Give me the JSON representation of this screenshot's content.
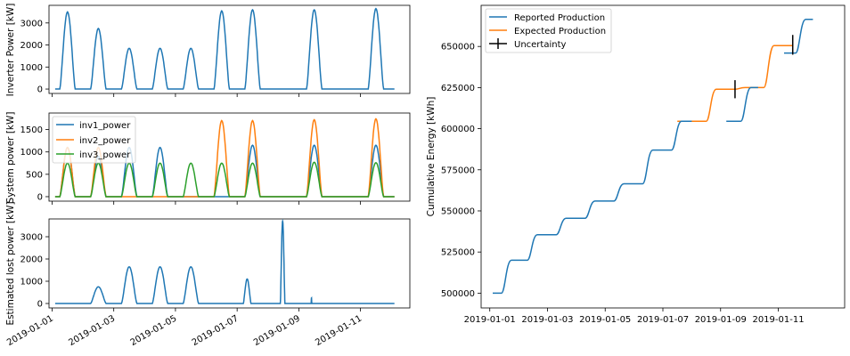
{
  "colors": {
    "blue": "#1f77b4",
    "orange": "#ff7f0e",
    "green": "#2ca02c",
    "black": "#000000"
  },
  "chart_data": [
    {
      "id": "inverter_power",
      "type": "line",
      "ylabel": "Inverter Power [kW]",
      "xlim": [
        -0.1,
        11.6
      ],
      "ylim": [
        -200,
        3800
      ],
      "yticks": [
        0,
        1000,
        2000,
        3000
      ],
      "series": [
        {
          "color": "blue",
          "days": [
            {
              "start": 0.25,
              "end": 0.75,
              "peak": 3500
            },
            {
              "start": 1.25,
              "end": 1.75,
              "peak": 2750
            },
            {
              "start": 2.25,
              "end": 2.75,
              "peak": 1850
            },
            {
              "start": 3.25,
              "end": 3.75,
              "peak": 1850
            },
            {
              "start": 4.25,
              "end": 4.75,
              "peak": 1850
            },
            {
              "start": 5.25,
              "end": 5.75,
              "peak": 3550
            },
            {
              "start": 6.25,
              "end": 6.75,
              "peak": 3600
            },
            {
              "start": 8.25,
              "end": 8.75,
              "peak": 3600
            },
            {
              "start": 10.25,
              "end": 10.75,
              "peak": 3650
            }
          ],
          "gaps": [
            [
              7.15,
              7.8
            ],
            [
              9.0,
              9.9
            ]
          ]
        }
      ]
    },
    {
      "id": "system_power",
      "type": "line",
      "ylabel": "System power [kW]",
      "xlim": [
        -0.1,
        11.6
      ],
      "ylim": [
        -100,
        1870
      ],
      "yticks": [
        0,
        500,
        1000,
        1500
      ],
      "legend": {
        "position": "upper-left",
        "entries": [
          "inv1_power",
          "inv2_power",
          "inv3_power"
        ]
      },
      "series": [
        {
          "name": "inv1_power",
          "color": "blue",
          "peaks": [
            1100,
            900,
            1100,
            1100,
            0,
            0,
            1150,
            1150,
            1150
          ]
        },
        {
          "name": "inv2_power",
          "color": "orange",
          "peaks": [
            1100,
            1100,
            0,
            0,
            0,
            1700,
            1700,
            1720,
            1740
          ]
        },
        {
          "name": "inv3_power",
          "color": "green",
          "peaks": [
            750,
            750,
            750,
            750,
            750,
            750,
            750,
            770,
            760
          ]
        }
      ],
      "day_starts": [
        0.25,
        1.25,
        2.25,
        3.25,
        4.25,
        5.25,
        6.25,
        8.25,
        10.25
      ]
    },
    {
      "id": "lost_power",
      "type": "line",
      "ylabel": "Estimated lost power [kW]",
      "xlim": [
        -0.1,
        11.6
      ],
      "ylim": [
        -200,
        3800
      ],
      "yticks": [
        0,
        1000,
        2000,
        3000
      ],
      "xticklabels": [
        "2019-01-01",
        "2019-01-03",
        "2019-01-05",
        "2019-01-07",
        "2019-01-09",
        "2019-01-11"
      ],
      "xtick_positions": [
        0,
        2,
        4,
        6,
        8,
        10
      ],
      "series": [
        {
          "color": "blue",
          "bumps": [
            {
              "start": 1.25,
              "end": 1.75,
              "peak": 750
            },
            {
              "start": 2.25,
              "end": 2.75,
              "peak": 1650
            },
            {
              "start": 3.25,
              "end": 3.75,
              "peak": 1650
            },
            {
              "start": 4.25,
              "end": 4.75,
              "peak": 1650
            },
            {
              "start": 6.2,
              "end": 6.45,
              "peak": 1100
            },
            {
              "start": 7.4,
              "end": 7.55,
              "peak": 3700
            },
            {
              "start": 8.4,
              "end": 8.42,
              "peak": 250
            }
          ],
          "xrange": [
            0.1,
            11.1
          ]
        }
      ]
    },
    {
      "id": "cumulative_energy",
      "type": "line",
      "ylabel": "Cumulative Energy [kWh]",
      "xlim": [
        -0.3,
        12.3
      ],
      "ylim": [
        491000,
        675000
      ],
      "yticks": [
        500000,
        525000,
        550000,
        575000,
        600000,
        625000,
        650000
      ],
      "xticklabels": [
        "2019-01-01",
        "2019-01-03",
        "2019-01-05",
        "2019-01-07",
        "2019-01-09",
        "2019-01-11"
      ],
      "xtick_positions": [
        0,
        2,
        4,
        6,
        8,
        10
      ],
      "legend": {
        "position": "upper-left",
        "entries": [
          "Reported Production",
          "Expected Production",
          "Uncertainty"
        ]
      },
      "reported_steps": [
        {
          "x0": 0.1,
          "x1": 0.4,
          "y": 500000
        },
        {
          "x0": 0.4,
          "x1": 1.3,
          "y": 520000
        },
        {
          "x0": 1.3,
          "x1": 2.3,
          "y": 535500
        },
        {
          "x0": 2.3,
          "x1": 3.3,
          "y": 545500
        },
        {
          "x0": 3.3,
          "x1": 4.3,
          "y": 556000
        },
        {
          "x0": 4.3,
          "x1": 5.3,
          "y": 566500
        },
        {
          "x0": 5.3,
          "x1": 6.3,
          "y": 587000
        },
        {
          "x0": 6.3,
          "x1": 7.0,
          "y": 604500
        },
        {
          "x0": 8.2,
          "x1": 8.7,
          "y": 604500
        },
        {
          "x0": 8.7,
          "x1": 9.3,
          "y": 625000
        },
        {
          "x0": 10.2,
          "x1": 10.6,
          "y": 646000
        },
        {
          "x0": 10.6,
          "x1": 11.2,
          "y": 666500
        }
      ],
      "expected_steps": [
        {
          "x0": 6.5,
          "x1": 7.0,
          "y": 604500
        },
        {
          "x0": 7.0,
          "x1": 7.5,
          "y": 604500
        },
        {
          "x0": 7.5,
          "x1": 8.5,
          "y": 624000
        },
        {
          "x0": 8.5,
          "x1": 9.5,
          "y": 625000
        },
        {
          "x0": 9.5,
          "x1": 10.5,
          "y": 650500
        }
      ],
      "uncertainty": [
        {
          "x": 8.5,
          "y": 624000,
          "err": 5500
        },
        {
          "x": 10.5,
          "y": 651000,
          "err": 6000
        }
      ]
    }
  ]
}
